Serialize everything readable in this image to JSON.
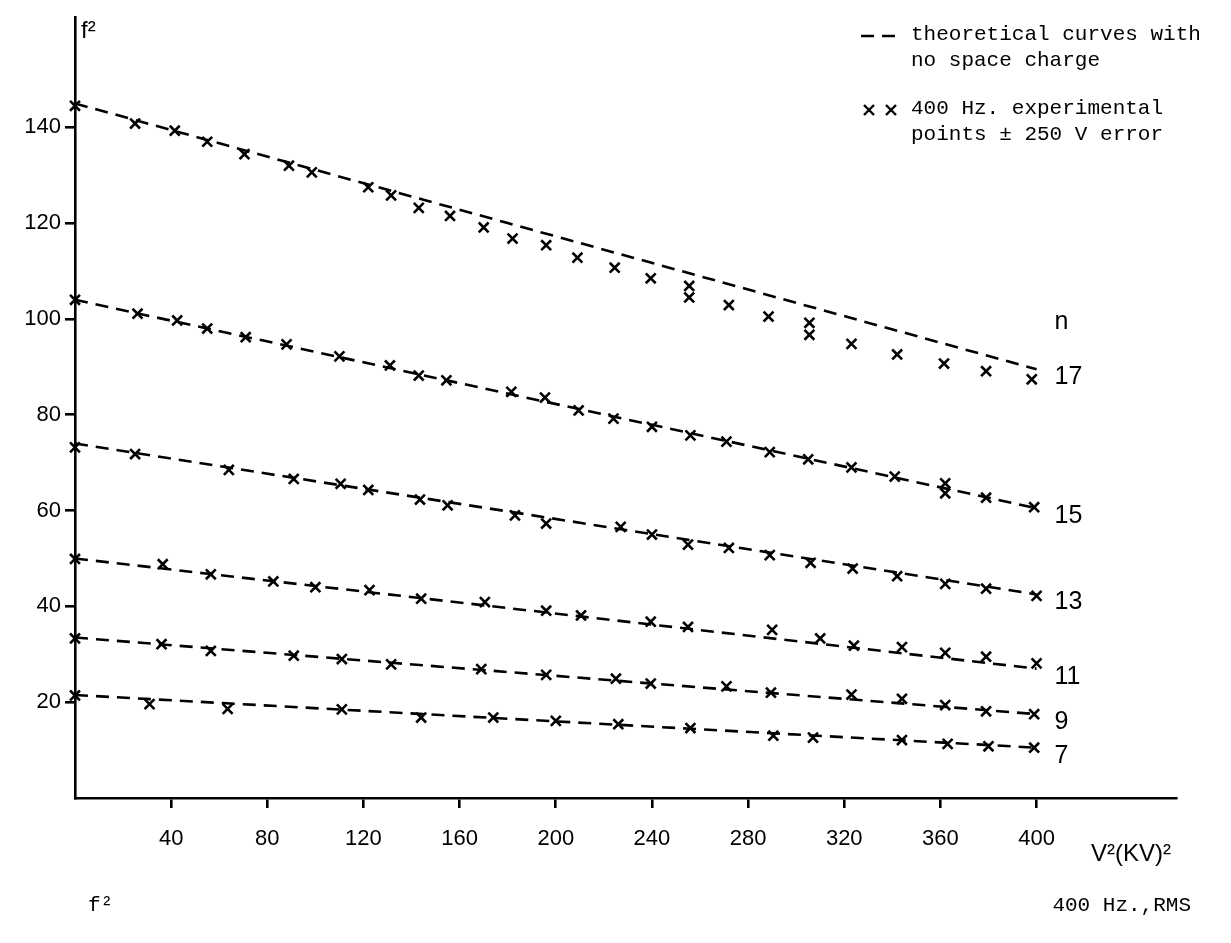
{
  "chart_data": {
    "type": "line",
    "xlabel": "V²(KV)²",
    "ylabel": "f²",
    "xlim": [
      0,
      458
    ],
    "ylim": [
      0,
      163
    ],
    "xticks": [
      40,
      80,
      120,
      160,
      200,
      240,
      280,
      320,
      360,
      400
    ],
    "yticks": [
      20,
      40,
      60,
      80,
      100,
      120,
      140
    ],
    "legend": "top right",
    "series": [
      {
        "name": "theoretical curves with no space charge",
        "type": "line",
        "line_style": "dashed",
        "color": "#000000",
        "x": [
          0,
          400
        ],
        "values": [
          145,
          89.5
        ]
      },
      {
        "type": "line",
        "line_style": "dashed",
        "color": "#000000",
        "x": [
          0,
          400
        ],
        "values": [
          104,
          60.5
        ]
      },
      {
        "type": "line",
        "line_style": "dashed",
        "color": "#000000",
        "x": [
          0,
          400
        ],
        "values": [
          74,
          42.5
        ]
      },
      {
        "type": "line",
        "line_style": "dashed",
        "color": "#000000",
        "x": [
          0,
          400
        ],
        "values": [
          50,
          27
        ]
      },
      {
        "type": "line",
        "line_style": "dashed",
        "color": "#000000",
        "x": [
          0,
          400
        ],
        "values": [
          33.5,
          17.5
        ]
      },
      {
        "type": "line",
        "line_style": "dashed",
        "color": "#000000",
        "x": [
          0,
          400
        ],
        "values": [
          21.5,
          10.5
        ]
      },
      {
        "name": "400 Hz. experimental points ± 250 V error",
        "type": "scatter",
        "marker": "cross",
        "color": "#000000",
        "x": [
          0,
          25,
          41.5,
          55,
          70.5,
          89,
          98.5,
          122,
          131.5,
          143,
          156,
          170,
          182,
          196,
          209,
          224.5,
          239.5,
          255.5,
          255.5,
          272,
          288.5,
          305.5,
          305.5,
          323,
          342,
          361.5,
          379,
          398
        ],
        "values": [
          144.5,
          140.8,
          139.3,
          137,
          134.4,
          132,
          130.6,
          127.5,
          125.8,
          123.2,
          121.5,
          119.1,
          116.8,
          115.4,
          112.8,
          110.7,
          108.5,
          106.9,
          104.5,
          102.9,
          100.5,
          99.2,
          96.7,
          94.8,
          92.6,
          90.7,
          89.1,
          87.4
        ]
      },
      {
        "type": "scatter",
        "marker": "cross",
        "color": "#000000",
        "x": [
          0,
          26,
          42.5,
          55,
          71,
          88,
          110,
          131,
          143,
          154.5,
          181.5,
          195.5,
          209.5,
          224,
          240,
          256,
          271,
          289,
          305,
          323,
          341,
          362,
          362,
          379,
          399
        ],
        "values": [
          104,
          101.1,
          99.7,
          98,
          96.2,
          94.7,
          92.2,
          90.3,
          88.2,
          87.2,
          84.8,
          83.6,
          80.9,
          79.2,
          77.5,
          75.7,
          74.4,
          72.2,
          70.7,
          69,
          67.1,
          65.7,
          63.6,
          62.7,
          60.7
        ]
      },
      {
        "type": "scatter",
        "marker": "cross",
        "color": "#000000",
        "x": [
          0,
          25,
          64,
          91,
          110.5,
          122,
          143.5,
          155,
          183,
          196,
          227,
          240,
          255,
          272,
          289,
          306,
          323.5,
          342,
          362,
          379,
          400
        ],
        "values": [
          73.2,
          71.8,
          68.5,
          66.6,
          65.6,
          64.3,
          62.3,
          61.1,
          59,
          57.3,
          56.6,
          55,
          52.9,
          52.2,
          50.7,
          49.1,
          47.9,
          46.3,
          44.7,
          43.7,
          42.2
        ]
      },
      {
        "type": "scatter",
        "marker": "cross",
        "color": "#000000",
        "x": [
          0,
          36.5,
          56.5,
          82.5,
          100,
          122.5,
          144,
          170.5,
          196,
          210.5,
          239.5,
          255,
          290,
          310,
          324,
          344,
          362,
          379,
          400
        ],
        "values": [
          49.9,
          48.8,
          46.7,
          45.2,
          44,
          43.4,
          41.6,
          40.9,
          39.1,
          38.1,
          36.8,
          35.7,
          35.1,
          33.3,
          31.8,
          31.5,
          30.3,
          29.5,
          28.1
        ]
      },
      {
        "type": "scatter",
        "marker": "cross",
        "color": "#000000",
        "x": [
          0,
          36,
          56.5,
          91,
          111,
          131.5,
          169,
          196,
          225,
          239.5,
          271,
          289.5,
          323,
          344,
          362,
          379,
          399
        ],
        "values": [
          33.3,
          32.1,
          30.7,
          29.7,
          29,
          27.9,
          26.9,
          25.7,
          24.9,
          23.9,
          23.3,
          22,
          21.6,
          20.7,
          19.4,
          18.1,
          17.5
        ]
      },
      {
        "type": "scatter",
        "marker": "cross",
        "color": "#000000",
        "x": [
          0,
          31,
          63.5,
          111,
          144,
          174,
          200,
          226,
          256,
          290.5,
          307,
          344,
          363,
          380,
          399
        ],
        "values": [
          21.4,
          19.6,
          18.6,
          18.5,
          16.8,
          16.8,
          16.1,
          15.4,
          14.6,
          13,
          12.6,
          12.1,
          11.3,
          10.8,
          10.5
        ]
      }
    ],
    "annotations": [
      "n",
      "17",
      "15",
      "13",
      "11",
      "9",
      "7",
      "f²",
      "400 Hz.,RMS"
    ]
  }
}
